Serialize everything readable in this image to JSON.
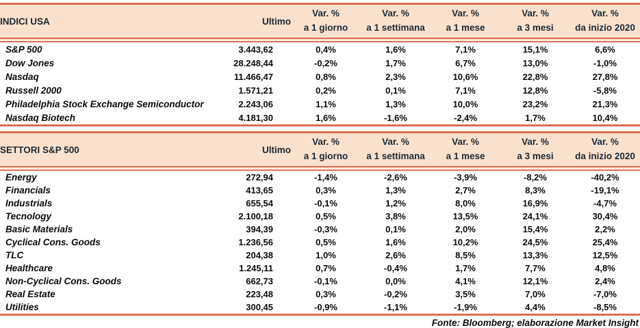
{
  "colors": {
    "band_fill": "#fae1ce",
    "rule_line": "#db6f54",
    "header_text": "#1a2833",
    "body_text": "#0a0a0a"
  },
  "columns": {
    "ultimo": "Ultimo",
    "var_label": "Var. %",
    "periods": [
      "a 1 giorno",
      "a 1 settimana",
      "a 1 mese",
      "a 3 mesi",
      "da inizio 2020"
    ]
  },
  "indices": {
    "title": "INDICI USA",
    "rows": [
      {
        "name": "S&P 500",
        "ultimo": "3.443,62",
        "d1": "0,4%",
        "w1": "1,6%",
        "m1": "7,1%",
        "m3": "15,1%",
        "ytd": "6,6%"
      },
      {
        "name": "Dow Jones",
        "ultimo": "28.248,44",
        "d1": "-0,2%",
        "w1": "1,7%",
        "m1": "6,7%",
        "m3": "13,0%",
        "ytd": "-1,0%"
      },
      {
        "name": "Nasdaq",
        "ultimo": "11.466,47",
        "d1": "0,8%",
        "w1": "2,3%",
        "m1": "10,6%",
        "m3": "22,8%",
        "ytd": "27,8%"
      },
      {
        "name": "Russell 2000",
        "ultimo": "1.571,21",
        "d1": "0,2%",
        "w1": "0,1%",
        "m1": "7,1%",
        "m3": "12,8%",
        "ytd": "-5,8%"
      },
      {
        "name": "Philadelphia Stock Exchange Semiconductor",
        "ultimo": "2.243,06",
        "d1": "1,1%",
        "w1": "1,3%",
        "m1": "10,0%",
        "m3": "23,2%",
        "ytd": "21,3%"
      },
      {
        "name": "Nasdaq Biotech",
        "ultimo": "4.181,30",
        "d1": "1,6%",
        "w1": "-1,6%",
        "m1": "-2,4%",
        "m3": "1,7%",
        "ytd": "10,4%"
      }
    ]
  },
  "sectors": {
    "title": "SETTORI S&P 500",
    "rows": [
      {
        "name": "Energy",
        "ultimo": "272,94",
        "d1": "-1,4%",
        "w1": "-2,6%",
        "m1": "-3,9%",
        "m3": "-8,2%",
        "ytd": "-40,2%"
      },
      {
        "name": "Financials",
        "ultimo": "413,65",
        "d1": "0,3%",
        "w1": "1,3%",
        "m1": "2,7%",
        "m3": "8,3%",
        "ytd": "-19,1%"
      },
      {
        "name": "Industrials",
        "ultimo": "655,54",
        "d1": "-0,1%",
        "w1": "1,2%",
        "m1": "8,0%",
        "m3": "16,9%",
        "ytd": "-4,7%"
      },
      {
        "name": "Tecnology",
        "ultimo": "2.100,18",
        "d1": "0,5%",
        "w1": "3,8%",
        "m1": "13,5%",
        "m3": "24,1%",
        "ytd": "30,4%"
      },
      {
        "name": "Basic Materials",
        "ultimo": "394,39",
        "d1": "-0,3%",
        "w1": "0,1%",
        "m1": "2,0%",
        "m3": "15,4%",
        "ytd": "2,2%"
      },
      {
        "name": "Cyclical Cons. Goods",
        "ultimo": "1.236,56",
        "d1": "0,5%",
        "w1": "1,6%",
        "m1": "10,2%",
        "m3": "24,5%",
        "ytd": "25,4%"
      },
      {
        "name": "TLC",
        "ultimo": "204,38",
        "d1": "1,0%",
        "w1": "2,6%",
        "m1": "8,5%",
        "m3": "13,3%",
        "ytd": "12,5%"
      },
      {
        "name": "Healthcare",
        "ultimo": "1.245,11",
        "d1": "0,7%",
        "w1": "-0,4%",
        "m1": "1,7%",
        "m3": "7,7%",
        "ytd": "4,8%"
      },
      {
        "name": "Non-Cyclical Cons. Goods",
        "ultimo": "662,73",
        "d1": "-0,1%",
        "w1": "0,0%",
        "m1": "4,1%",
        "m3": "12,1%",
        "ytd": "2,4%"
      },
      {
        "name": "Real Estate",
        "ultimo": "223,48",
        "d1": "0,3%",
        "w1": "-0,2%",
        "m1": "3,5%",
        "m3": "7,0%",
        "ytd": "-7,0%"
      },
      {
        "name": "Utilities",
        "ultimo": "300,45",
        "d1": "-0,9%",
        "w1": "-1,1%",
        "m1": "-1,9%",
        "m3": "4,4%",
        "ytd": "-8,5%"
      }
    ]
  },
  "footer": {
    "source_note": "Fonte: Bloomberg; elaborazione Market Insight"
  },
  "chart_data": [
    {
      "type": "table",
      "title": "INDICI USA",
      "columns": [
        "Ultimo",
        "Var. % a 1 giorno",
        "Var. % a 1 settimana",
        "Var. % a 1 mese",
        "Var. % a 3 mesi",
        "Var. % da inizio 2020"
      ],
      "rows": [
        [
          "S&P 500",
          3443.62,
          0.4,
          1.6,
          7.1,
          15.1,
          6.6
        ],
        [
          "Dow Jones",
          28248.44,
          -0.2,
          1.7,
          6.7,
          13.0,
          -1.0
        ],
        [
          "Nasdaq",
          11466.47,
          0.8,
          2.3,
          10.6,
          22.8,
          27.8
        ],
        [
          "Russell 2000",
          1571.21,
          0.2,
          0.1,
          7.1,
          12.8,
          -5.8
        ],
        [
          "Philadelphia Stock Exchange Semiconductor",
          2243.06,
          1.1,
          1.3,
          10.0,
          23.2,
          21.3
        ],
        [
          "Nasdaq Biotech",
          4181.3,
          1.6,
          -1.6,
          -2.4,
          1.7,
          10.4
        ]
      ]
    },
    {
      "type": "table",
      "title": "SETTORI S&P 500",
      "columns": [
        "Ultimo",
        "Var. % a 1 giorno",
        "Var. % a 1 settimana",
        "Var. % a 1 mese",
        "Var. % a 3 mesi",
        "Var. % da inizio 2020"
      ],
      "rows": [
        [
          "Energy",
          272.94,
          -1.4,
          -2.6,
          -3.9,
          -8.2,
          -40.2
        ],
        [
          "Financials",
          413.65,
          0.3,
          1.3,
          2.7,
          8.3,
          -19.1
        ],
        [
          "Industrials",
          655.54,
          -0.1,
          1.2,
          8.0,
          16.9,
          -4.7
        ],
        [
          "Tecnology",
          2100.18,
          0.5,
          3.8,
          13.5,
          24.1,
          30.4
        ],
        [
          "Basic Materials",
          394.39,
          -0.3,
          0.1,
          2.0,
          15.4,
          2.2
        ],
        [
          "Cyclical Cons. Goods",
          1236.56,
          0.5,
          1.6,
          10.2,
          24.5,
          25.4
        ],
        [
          "TLC",
          204.38,
          1.0,
          2.6,
          8.5,
          13.3,
          12.5
        ],
        [
          "Healthcare",
          1245.11,
          0.7,
          -0.4,
          1.7,
          7.7,
          4.8
        ],
        [
          "Non-Cyclical Cons. Goods",
          662.73,
          -0.1,
          0.0,
          4.1,
          12.1,
          2.4
        ],
        [
          "Real Estate",
          223.48,
          0.3,
          -0.2,
          3.5,
          7.0,
          -7.0
        ],
        [
          "Utilities",
          300.45,
          -0.9,
          -1.1,
          -1.9,
          4.4,
          -8.5
        ]
      ]
    }
  ]
}
